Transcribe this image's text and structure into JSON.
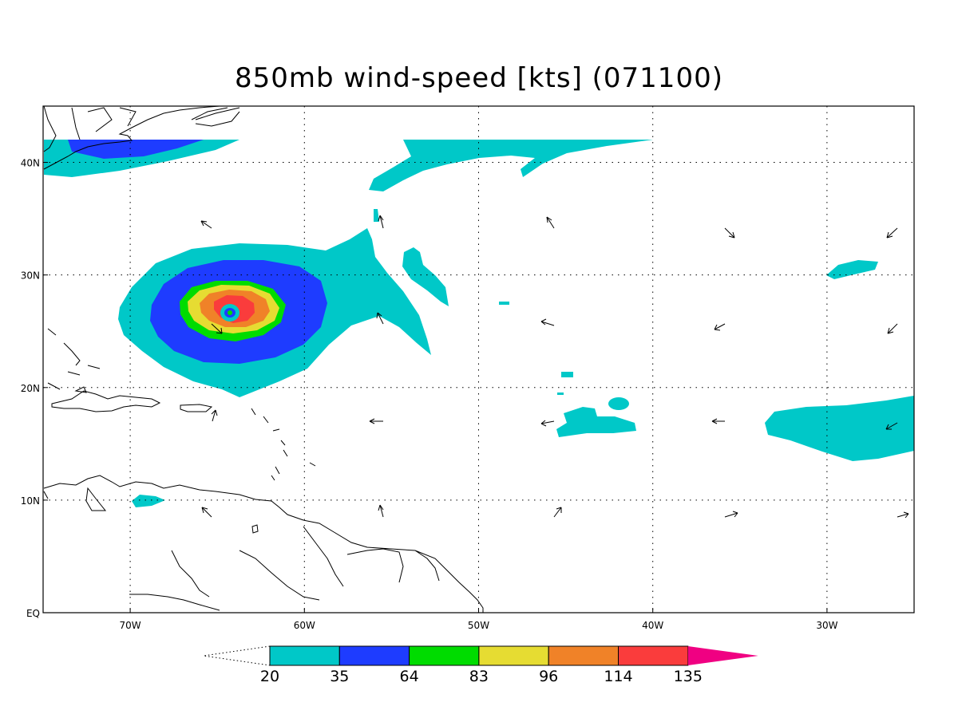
{
  "title": "850mb wind-speed [kts] (071100)",
  "map": {
    "longitudes": [
      {
        "label": "70W",
        "lon": -70
      },
      {
        "label": "60W",
        "lon": -60
      },
      {
        "label": "50W",
        "lon": -50
      },
      {
        "label": "40W",
        "lon": -40
      },
      {
        "label": "30W",
        "lon": -30
      }
    ],
    "latitudes": [
      {
        "label": "40N",
        "lat": 40
      },
      {
        "label": "30N",
        "lat": 30
      },
      {
        "label": "20N",
        "lat": 20
      },
      {
        "label": "10N",
        "lat": 10
      },
      {
        "label": "EQ",
        "lat": 0
      }
    ],
    "lon_range": [
      -75,
      -25
    ],
    "lat_range": [
      0,
      45
    ]
  },
  "colorbar": {
    "levels": [
      "20",
      "35",
      "64",
      "83",
      "96",
      "114",
      "135"
    ],
    "colors": [
      "#00c8c8",
      "#1e3cff",
      "#00dc00",
      "#e6dc32",
      "#f08228",
      "#fa3c3c",
      "#f00082"
    ]
  }
}
